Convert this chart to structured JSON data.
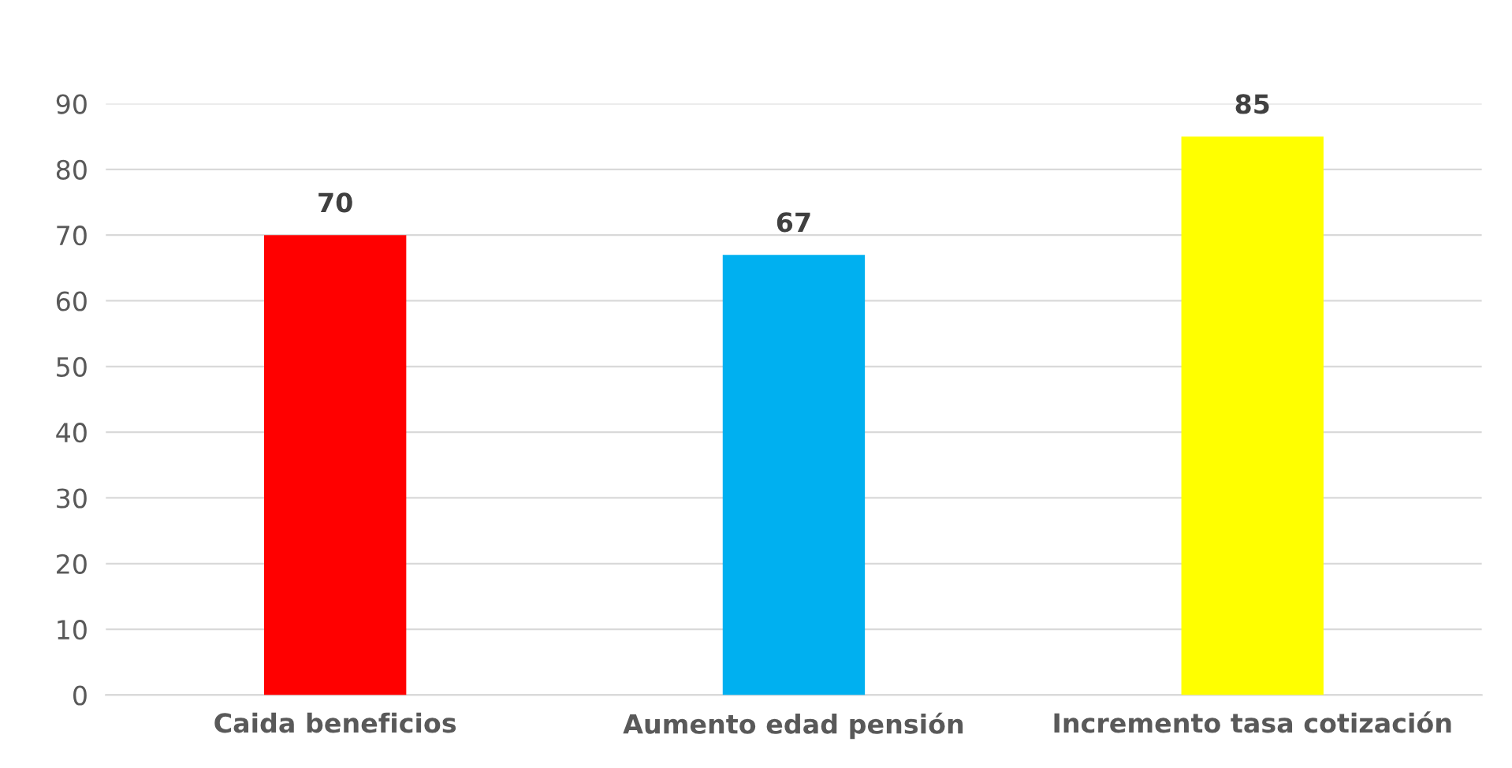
{
  "chart_data": {
    "type": "bar",
    "categories": [
      "Caida beneficios",
      "Aumento edad pensión",
      "Incremento tasa cotización"
    ],
    "colors": [
      "#ff0000",
      "#00b0f0",
      "#ffff00"
    ],
    "values": [
      70,
      67,
      85
    ],
    "ylim": [
      0,
      90
    ],
    "yticks": [
      0,
      10,
      20,
      30,
      40,
      50,
      60,
      70,
      80,
      90
    ],
    "grid": "y",
    "data_labels": true
  }
}
